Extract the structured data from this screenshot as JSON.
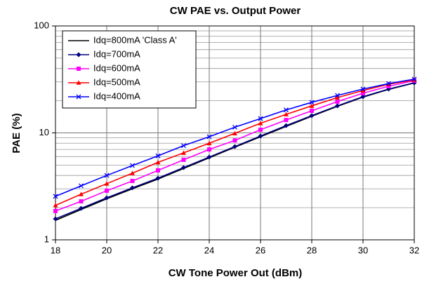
{
  "chart_data": {
    "type": "line",
    "title": "CW PAE vs. Output Power",
    "x_label": "CW Tone Power Out (dBm)",
    "y_label": "PAE (%)",
    "x": [
      18,
      19,
      20,
      21,
      22,
      23,
      24,
      25,
      26,
      27,
      28,
      29,
      30,
      31,
      32
    ],
    "series": [
      {
        "name": "Idq=800mA 'Class A'",
        "color": "#000000",
        "marker": "none",
        "values": [
          1.52,
          1.92,
          2.42,
          3.0,
          3.7,
          4.65,
          5.85,
          7.35,
          9.2,
          11.5,
          14.3,
          17.7,
          21.6,
          25.5,
          29.3
        ]
      },
      {
        "name": "Idq=700mA",
        "color": "#000080",
        "marker": "diamond",
        "values": [
          1.57,
          1.97,
          2.47,
          3.06,
          3.77,
          4.74,
          5.94,
          7.45,
          9.35,
          11.7,
          14.5,
          17.9,
          21.8,
          25.7,
          29.4
        ]
      },
      {
        "name": "Idq=600mA",
        "color": "#ff00ff",
        "marker": "square",
        "values": [
          1.86,
          2.29,
          2.88,
          3.55,
          4.46,
          5.6,
          7.0,
          8.5,
          10.7,
          13.2,
          16.1,
          19.6,
          23.5,
          27.3,
          30.8
        ]
      },
      {
        "name": "Idq=500mA",
        "color": "#ff0000",
        "marker": "triangle",
        "values": [
          2.1,
          2.67,
          3.35,
          4.2,
          5.3,
          6.5,
          8.0,
          9.9,
          12.3,
          14.9,
          17.9,
          21.4,
          24.9,
          28.5,
          31.3
        ]
      },
      {
        "name": "Idq=400mA",
        "color": "#0000ff",
        "marker": "x",
        "values": [
          2.55,
          3.2,
          4.0,
          4.95,
          6.1,
          7.6,
          9.2,
          11.3,
          13.6,
          16.4,
          19.3,
          22.4,
          25.7,
          28.9,
          31.8
        ]
      }
    ],
    "xlim": [
      18,
      32
    ],
    "xticks": [
      18,
      20,
      22,
      24,
      26,
      28,
      30,
      32
    ],
    "ylim": [
      1,
      100
    ],
    "yticks": [
      1,
      10,
      100
    ],
    "y_log": true,
    "grid": true,
    "minor_grid": true,
    "legend_position": "upper-left"
  }
}
